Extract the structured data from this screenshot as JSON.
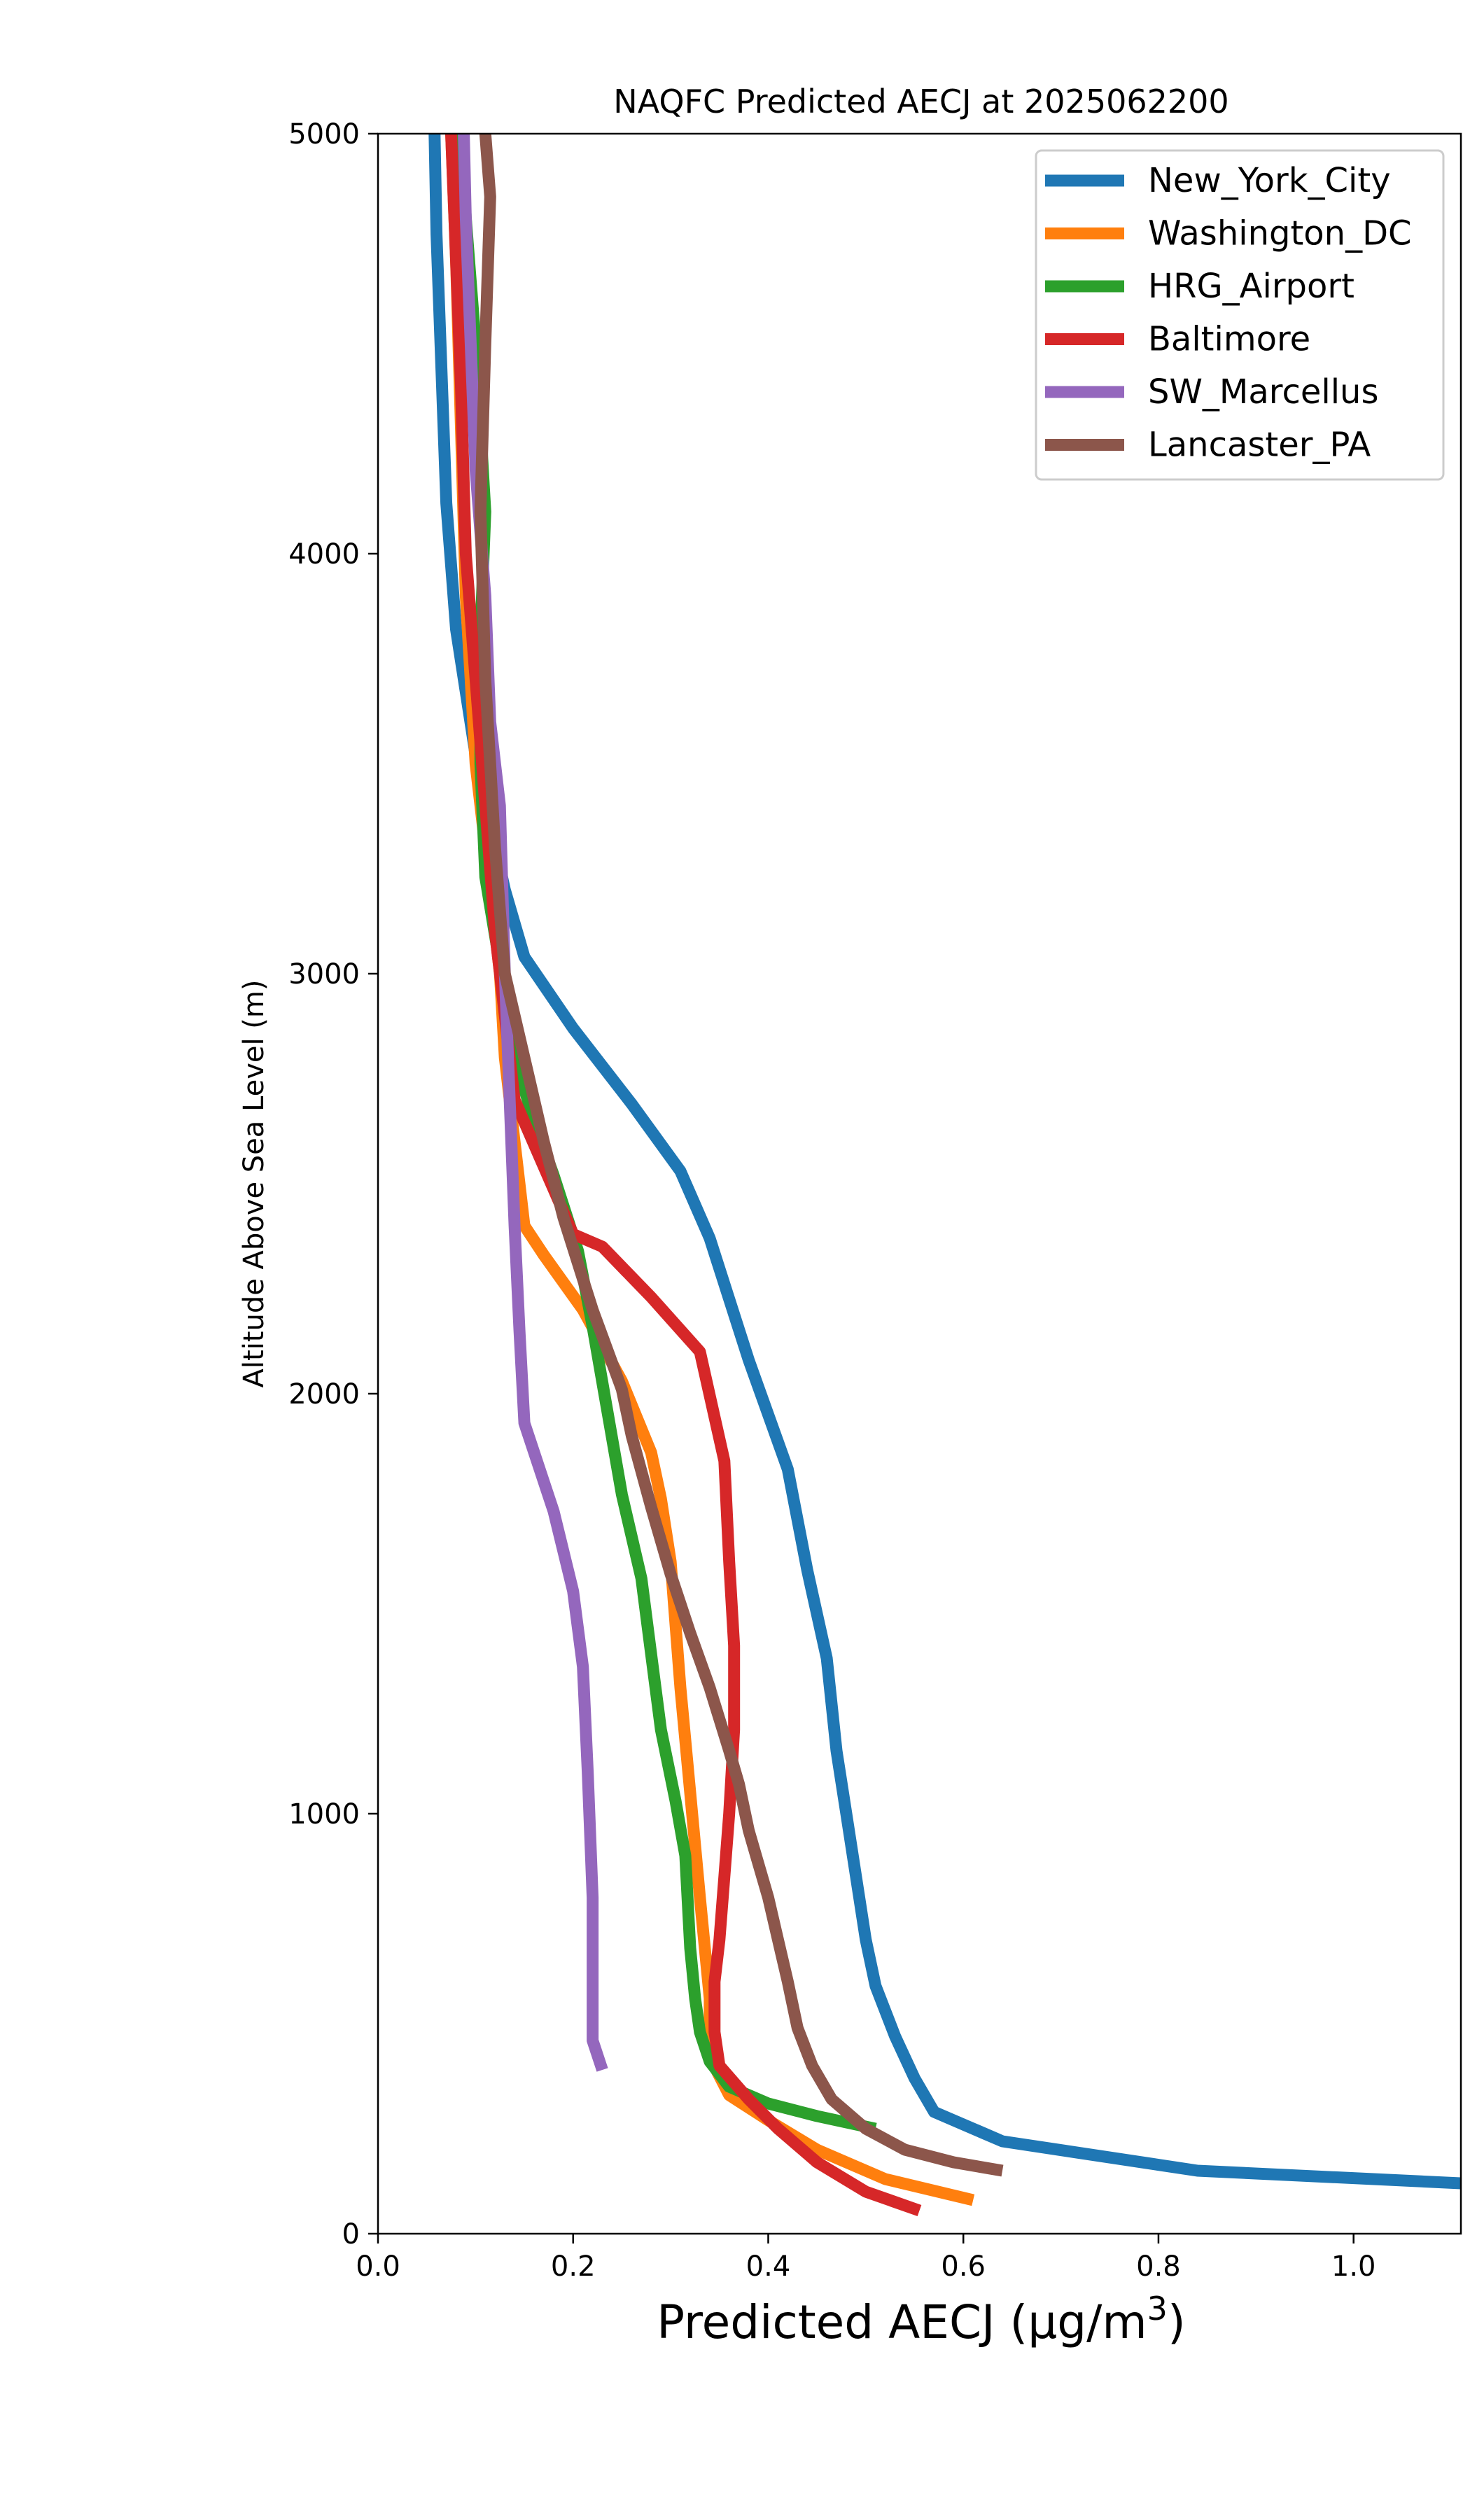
{
  "chart_data": {
    "type": "line",
    "title": "NAQFC Predicted AECJ at 2025062200",
    "xlabel": "Predicted AECJ (μg/m",
    "xlabel_sup": "3",
    "xlabel_end": ")",
    "ylabel": "Altitude Above Sea Level (m)",
    "xlim": [
      0.0,
      1.11
    ],
    "ylim": [
      0,
      5000
    ],
    "xticks": [
      0.0,
      0.2,
      0.4,
      0.6,
      0.8,
      1.0
    ],
    "xtick_labels": [
      "0.0",
      "0.2",
      "0.4",
      "0.6",
      "0.8",
      "1.0"
    ],
    "yticks": [
      0,
      1000,
      2000,
      3000,
      4000,
      5000
    ],
    "ytick_labels": [
      "0",
      "1000",
      "2000",
      "3000",
      "4000",
      "5000"
    ],
    "grid": false,
    "legend_position": "top-right",
    "series": [
      {
        "name": "New_York_City",
        "color": "#1f77b4",
        "points": [
          [
            1.11,
            120
          ],
          [
            0.84,
            150
          ],
          [
            0.64,
            220
          ],
          [
            0.57,
            290
          ],
          [
            0.55,
            370
          ],
          [
            0.53,
            470
          ],
          [
            0.51,
            590
          ],
          [
            0.5,
            700
          ],
          [
            0.49,
            850
          ],
          [
            0.48,
            1000
          ],
          [
            0.47,
            1150
          ],
          [
            0.46,
            1370
          ],
          [
            0.44,
            1580
          ],
          [
            0.42,
            1820
          ],
          [
            0.38,
            2080
          ],
          [
            0.34,
            2370
          ],
          [
            0.31,
            2530
          ],
          [
            0.26,
            2690
          ],
          [
            0.2,
            2870
          ],
          [
            0.15,
            3040
          ],
          [
            0.13,
            3200
          ],
          [
            0.1,
            3520
          ],
          [
            0.08,
            3820
          ],
          [
            0.07,
            4120
          ],
          [
            0.065,
            4440
          ],
          [
            0.06,
            4760
          ],
          [
            0.058,
            5000
          ]
        ]
      },
      {
        "name": "Washington_DC",
        "color": "#ff7f0e",
        "points": [
          [
            0.61,
            80
          ],
          [
            0.52,
            130
          ],
          [
            0.45,
            200
          ],
          [
            0.4,
            270
          ],
          [
            0.36,
            330
          ],
          [
            0.34,
            420
          ],
          [
            0.34,
            560
          ],
          [
            0.33,
            800
          ],
          [
            0.32,
            1050
          ],
          [
            0.31,
            1300
          ],
          [
            0.3,
            1600
          ],
          [
            0.29,
            1750
          ],
          [
            0.28,
            1860
          ],
          [
            0.25,
            2030
          ],
          [
            0.21,
            2200
          ],
          [
            0.17,
            2330
          ],
          [
            0.15,
            2400
          ],
          [
            0.14,
            2600
          ],
          [
            0.13,
            2800
          ],
          [
            0.125,
            3000
          ],
          [
            0.115,
            3200
          ],
          [
            0.1,
            3500
          ],
          [
            0.09,
            3900
          ],
          [
            0.085,
            4300
          ],
          [
            0.08,
            4700
          ],
          [
            0.075,
            5000
          ]
        ]
      },
      {
        "name": "HRG_Airport",
        "color": "#2ca02c",
        "points": [
          [
            0.51,
            250
          ],
          [
            0.45,
            280
          ],
          [
            0.4,
            310
          ],
          [
            0.36,
            350
          ],
          [
            0.34,
            410
          ],
          [
            0.33,
            480
          ],
          [
            0.325,
            560
          ],
          [
            0.32,
            680
          ],
          [
            0.315,
            900
          ],
          [
            0.305,
            1030
          ],
          [
            0.29,
            1200
          ],
          [
            0.28,
            1380
          ],
          [
            0.27,
            1560
          ],
          [
            0.25,
            1760
          ],
          [
            0.235,
            1960
          ],
          [
            0.22,
            2160
          ],
          [
            0.205,
            2340
          ],
          [
            0.18,
            2520
          ],
          [
            0.16,
            2650
          ],
          [
            0.14,
            2800
          ],
          [
            0.13,
            2950
          ],
          [
            0.11,
            3230
          ],
          [
            0.105,
            3500
          ],
          [
            0.105,
            3800
          ],
          [
            0.11,
            4100
          ],
          [
            0.1,
            4500
          ],
          [
            0.09,
            4800
          ],
          [
            0.085,
            5000
          ]
        ]
      },
      {
        "name": "Baltimore",
        "color": "#d62728",
        "points": [
          [
            0.555,
            55
          ],
          [
            0.5,
            100
          ],
          [
            0.45,
            170
          ],
          [
            0.41,
            250
          ],
          [
            0.38,
            320
          ],
          [
            0.35,
            400
          ],
          [
            0.345,
            480
          ],
          [
            0.345,
            600
          ],
          [
            0.35,
            700
          ],
          [
            0.355,
            850
          ],
          [
            0.36,
            1000
          ],
          [
            0.365,
            1200
          ],
          [
            0.365,
            1400
          ],
          [
            0.36,
            1600
          ],
          [
            0.355,
            1840
          ],
          [
            0.33,
            2100
          ],
          [
            0.28,
            2230
          ],
          [
            0.23,
            2350
          ],
          [
            0.2,
            2380
          ],
          [
            0.17,
            2540
          ],
          [
            0.14,
            2700
          ],
          [
            0.13,
            2900
          ],
          [
            0.12,
            3100
          ],
          [
            0.11,
            3400
          ],
          [
            0.1,
            3700
          ],
          [
            0.09,
            4000
          ],
          [
            0.085,
            4400
          ],
          [
            0.08,
            4700
          ],
          [
            0.075,
            5000
          ]
        ]
      },
      {
        "name": "SW_Marcellus",
        "color": "#9467bd",
        "points": [
          [
            0.23,
            390
          ],
          [
            0.22,
            460
          ],
          [
            0.22,
            600
          ],
          [
            0.22,
            800
          ],
          [
            0.215,
            1100
          ],
          [
            0.21,
            1350
          ],
          [
            0.2,
            1530
          ],
          [
            0.18,
            1720
          ],
          [
            0.15,
            1930
          ],
          [
            0.145,
            2150
          ],
          [
            0.14,
            2400
          ],
          [
            0.135,
            2700
          ],
          [
            0.13,
            3000
          ],
          [
            0.125,
            3400
          ],
          [
            0.115,
            3600
          ],
          [
            0.11,
            3900
          ],
          [
            0.1,
            4200
          ],
          [
            0.095,
            4500
          ],
          [
            0.09,
            4800
          ],
          [
            0.088,
            5000
          ]
        ]
      },
      {
        "name": "Lancaster_PA",
        "color": "#8c564b",
        "points": [
          [
            0.64,
            150
          ],
          [
            0.59,
            170
          ],
          [
            0.54,
            200
          ],
          [
            0.5,
            250
          ],
          [
            0.465,
            320
          ],
          [
            0.445,
            400
          ],
          [
            0.43,
            490
          ],
          [
            0.42,
            600
          ],
          [
            0.41,
            700
          ],
          [
            0.4,
            800
          ],
          [
            0.38,
            960
          ],
          [
            0.37,
            1070
          ],
          [
            0.36,
            1150
          ],
          [
            0.34,
            1300
          ],
          [
            0.32,
            1430
          ],
          [
            0.3,
            1570
          ],
          [
            0.28,
            1730
          ],
          [
            0.26,
            1900
          ],
          [
            0.25,
            2010
          ],
          [
            0.22,
            2200
          ],
          [
            0.19,
            2420
          ],
          [
            0.17,
            2600
          ],
          [
            0.15,
            2800
          ],
          [
            0.13,
            3000
          ],
          [
            0.12,
            3300
          ],
          [
            0.11,
            3700
          ],
          [
            0.105,
            4100
          ],
          [
            0.11,
            4500
          ],
          [
            0.115,
            4850
          ],
          [
            0.11,
            5000
          ]
        ]
      }
    ]
  }
}
